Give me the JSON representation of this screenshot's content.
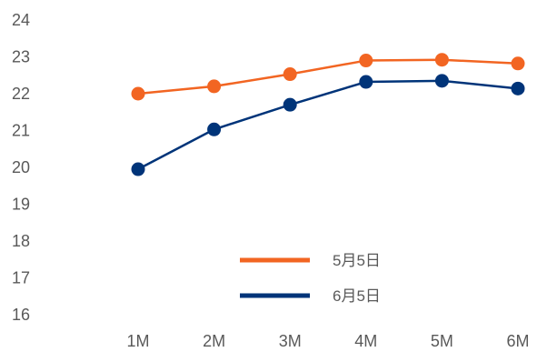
{
  "chart_data": {
    "type": "line",
    "x": [
      "1M",
      "2M",
      "3M",
      "4M",
      "5M",
      "6M"
    ],
    "ylim": [
      16,
      24
    ],
    "yticks": [
      16,
      17,
      18,
      19,
      20,
      21,
      22,
      23,
      24
    ],
    "grid": false,
    "legend_position": "bottom-center",
    "series": [
      {
        "name": "5月5日",
        "color": "#F26522",
        "values": [
          22.0,
          22.2,
          22.53,
          22.9,
          22.92,
          22.82
        ]
      },
      {
        "name": "6月5日",
        "color": "#003479",
        "values": [
          19.95,
          21.03,
          21.7,
          22.32,
          22.35,
          22.14
        ]
      }
    ]
  }
}
